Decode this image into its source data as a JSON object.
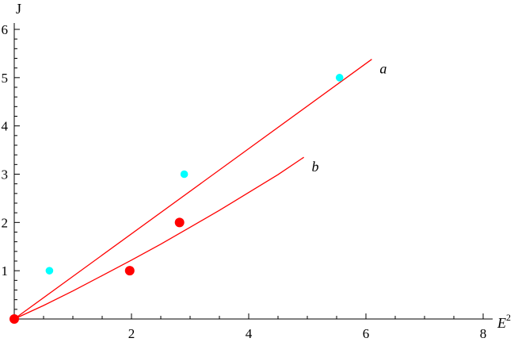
{
  "chart_data": {
    "type": "scatter",
    "title": "",
    "xlabel": "E",
    "xlabel_sup": "2",
    "ylabel": "J",
    "xlim": [
      0,
      8
    ],
    "ylim": [
      0,
      6
    ],
    "xticks": [
      "2",
      "4",
      "6",
      "8"
    ],
    "yticks": [
      "1",
      "2",
      "3",
      "4",
      "5",
      "6"
    ],
    "grid": false,
    "colors": {
      "curves": "#ff0000",
      "cyan_points": "#00ffff",
      "red_points": "#ff0000",
      "axes": "#000000"
    },
    "series": [
      {
        "name": "a",
        "type": "line",
        "x": [
          0,
          6.1
        ],
        "y": [
          0,
          5.38
        ]
      },
      {
        "name": "b",
        "type": "line",
        "x": [
          0,
          0.5,
          1,
          1.5,
          2,
          2.5,
          3,
          3.5,
          4,
          4.5,
          4.94
        ],
        "y": [
          0,
          0.28,
          0.58,
          0.9,
          1.22,
          1.55,
          1.9,
          2.25,
          2.62,
          2.99,
          3.35
        ]
      },
      {
        "type": "scatter",
        "color": "#00ffff",
        "x": [
          0.6,
          2.9,
          5.55
        ],
        "y": [
          1,
          3,
          5
        ]
      },
      {
        "type": "scatter",
        "color": "#ff0000",
        "x": [
          0,
          1.97,
          2.82
        ],
        "y": [
          0,
          1,
          2
        ]
      }
    ]
  }
}
